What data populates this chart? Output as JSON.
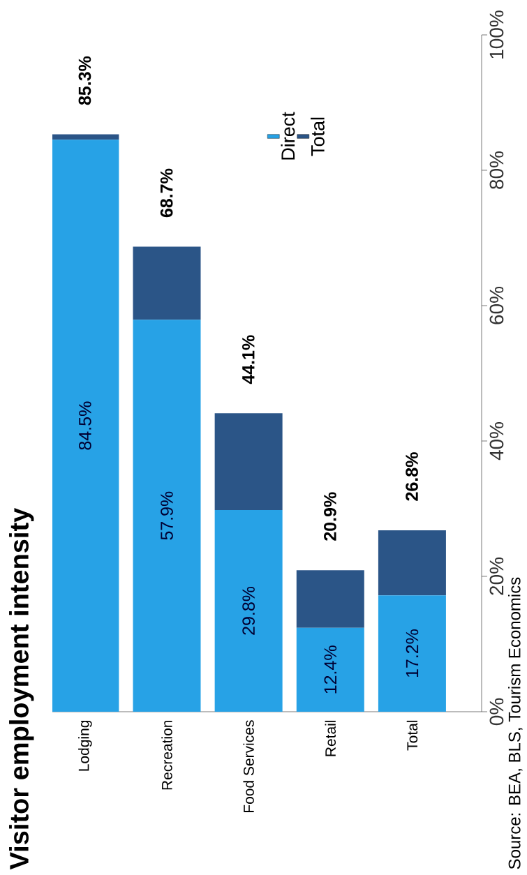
{
  "chart_data": {
    "type": "bar",
    "title": "Visitor employment intensity",
    "categories": [
      "Lodging",
      "Recreation",
      "Food Services",
      "Retail",
      "Total"
    ],
    "stacked": true,
    "series": [
      {
        "name": "Direct",
        "color": "#27a2e6",
        "values": [
          84.5,
          57.9,
          29.8,
          12.4,
          17.2
        ],
        "value_labels": [
          "84.5%",
          "57.9%",
          "29.8%",
          "12.4%",
          "17.2%"
        ]
      },
      {
        "name": "Total",
        "color": "#2b5587",
        "values": [
          0.8,
          10.8,
          14.3,
          8.5,
          9.6
        ]
      }
    ],
    "totals": [
      "85.3%",
      "68.7%",
      "44.1%",
      "20.9%",
      "26.8%"
    ],
    "ylim": [
      0,
      100
    ],
    "yticks": [
      {
        "value": 0,
        "label": "0%"
      },
      {
        "value": 20,
        "label": "20%"
      },
      {
        "value": 40,
        "label": "40%"
      },
      {
        "value": 60,
        "label": "60%"
      },
      {
        "value": 80,
        "label": "80%"
      },
      {
        "value": 100,
        "label": "100%"
      }
    ],
    "legend": "top",
    "grid": false,
    "annotations": [
      "Source: BEA, BLS, Tourism Economics"
    ]
  }
}
